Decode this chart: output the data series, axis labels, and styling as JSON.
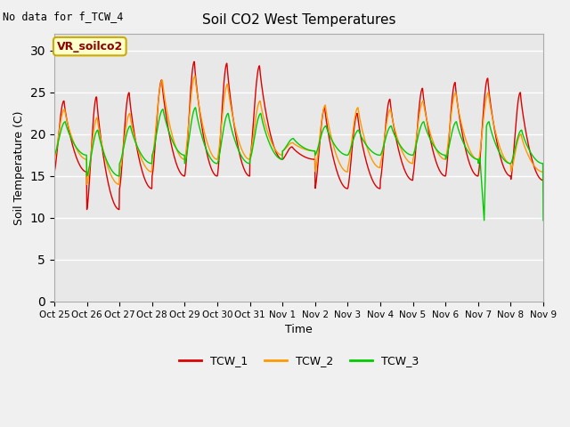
{
  "title": "Soil CO2 West Temperatures",
  "xlabel": "Time",
  "ylabel": "Soil Temperature (C)",
  "no_data_text": "No data for f_TCW_4",
  "vr_label": "VR_soilco2",
  "ylim": [
    0,
    32
  ],
  "yticks": [
    0,
    5,
    10,
    15,
    20,
    25,
    30
  ],
  "figsize": [
    6.4,
    4.8
  ],
  "dpi": 100,
  "fig_bg": "#f0f0f0",
  "plot_bg": "#e8e8e8",
  "grid_color": "#ffffff",
  "xtick_labels": [
    "Oct 25",
    "Oct 26",
    "Oct 27",
    "Oct 28",
    "Oct 29",
    "Oct 30",
    "Oct 31",
    "Nov 1",
    "Nov 2",
    "Nov 3",
    "Nov 4",
    "Nov 5",
    "Nov 6",
    "Nov 7",
    "Nov 8",
    "Nov 9"
  ],
  "line_colors": {
    "TCW_1": "#dd0000",
    "TCW_2": "#ff9900",
    "TCW_3": "#00cc00"
  },
  "vr_box_facecolor": "#ffffcc",
  "vr_box_edgecolor": "#ccaa00",
  "vr_text_color": "#8B0000"
}
